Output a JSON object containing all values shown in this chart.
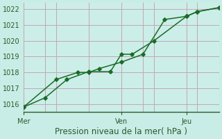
{
  "xlabel": "Pression niveau de la mer( hPa )",
  "background_color": "#c8ece6",
  "plot_bg_color": "#cceee8",
  "grid_color": "#c0a8b4",
  "line_color": "#1a6b28",
  "ylim": [
    1015.5,
    1022.4
  ],
  "xlim": [
    0,
    9
  ],
  "yticks": [
    1016,
    1017,
    1018,
    1019,
    1020,
    1021,
    1022
  ],
  "xtick_positions": [
    0.0,
    4.5,
    7.5
  ],
  "xtick_labels": [
    "Mer",
    "Ven",
    "Jeu"
  ],
  "vline_all": [
    0.0,
    1.0,
    1.5,
    3.0,
    4.5,
    5.5,
    6.0,
    7.5,
    8.0,
    9.0
  ],
  "line1_x": [
    0.0,
    1.0,
    2.0,
    3.0,
    4.0,
    4.5,
    5.0,
    6.0,
    7.5,
    8.0,
    9.0
  ],
  "line1_y": [
    1015.8,
    1016.4,
    1017.55,
    1018.05,
    1018.05,
    1019.15,
    1019.15,
    1020.0,
    1021.55,
    1021.85,
    1022.1
  ],
  "line2_x": [
    0.0,
    1.5,
    2.5,
    3.0,
    3.5,
    4.5,
    5.5,
    6.5,
    7.5,
    8.0,
    9.0
  ],
  "line2_y": [
    1015.8,
    1017.55,
    1018.0,
    1018.0,
    1018.25,
    1018.65,
    1019.15,
    1021.35,
    1021.55,
    1021.85,
    1022.1
  ],
  "marker": "D",
  "markersize": 2.8,
  "linewidth": 1.1,
  "fontsize_ticks": 7,
  "fontsize_xlabel": 8.5
}
